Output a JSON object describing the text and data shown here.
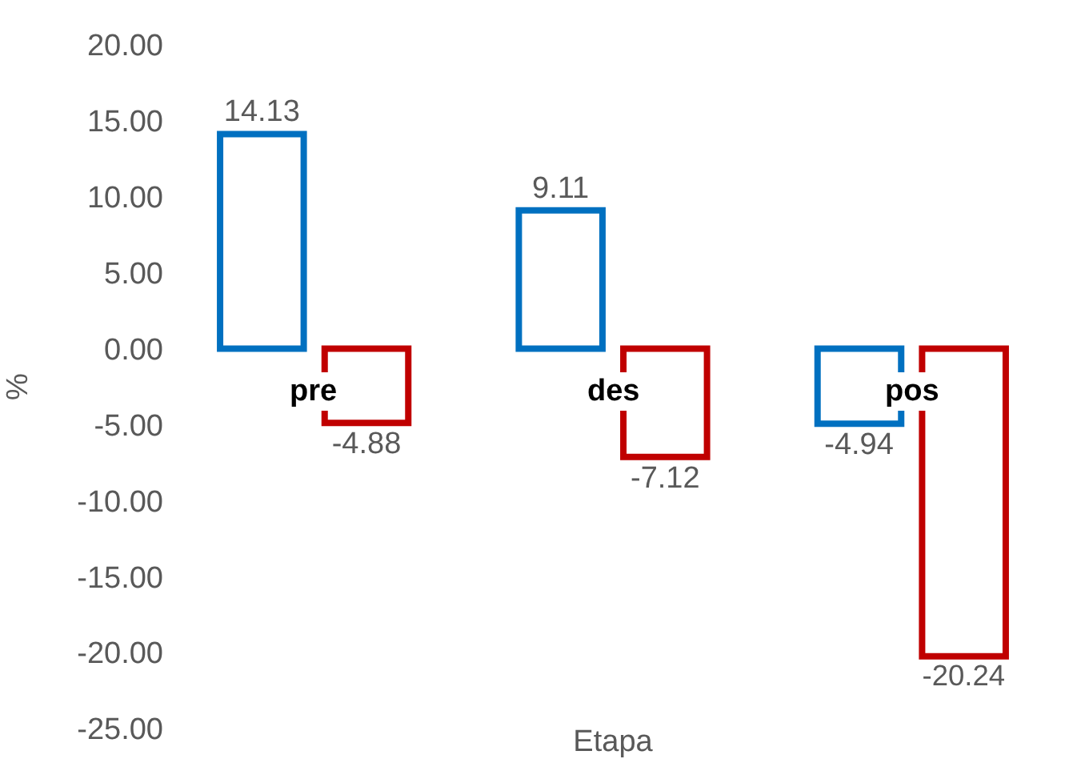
{
  "chart_data": {
    "type": "bar",
    "xlabel": "Etapa",
    "ylabel": "%",
    "categories": [
      "pre",
      "des",
      "pos"
    ],
    "series": [
      {
        "color": "#0070c0",
        "values": [
          14.13,
          9.11,
          -4.94
        ]
      },
      {
        "color": "#c00000",
        "values": [
          -4.88,
          -7.12,
          -20.24
        ]
      }
    ],
    "ylim": [
      -25,
      20
    ],
    "yticks": [
      {
        "value": -25,
        "label": "-25.00"
      },
      {
        "value": -20,
        "label": "-20.00"
      },
      {
        "value": -15,
        "label": "-15.00"
      },
      {
        "value": -10,
        "label": "-10.00"
      },
      {
        "value": -5,
        "label": "-5.00"
      },
      {
        "value": 0,
        "label": "0.00"
      },
      {
        "value": 5,
        "label": "5.00"
      },
      {
        "value": 10,
        "label": "10.00"
      },
      {
        "value": 15,
        "label": "15.00"
      },
      {
        "value": 20,
        "label": "20.00"
      }
    ],
    "data_labels": true,
    "legend": false
  }
}
